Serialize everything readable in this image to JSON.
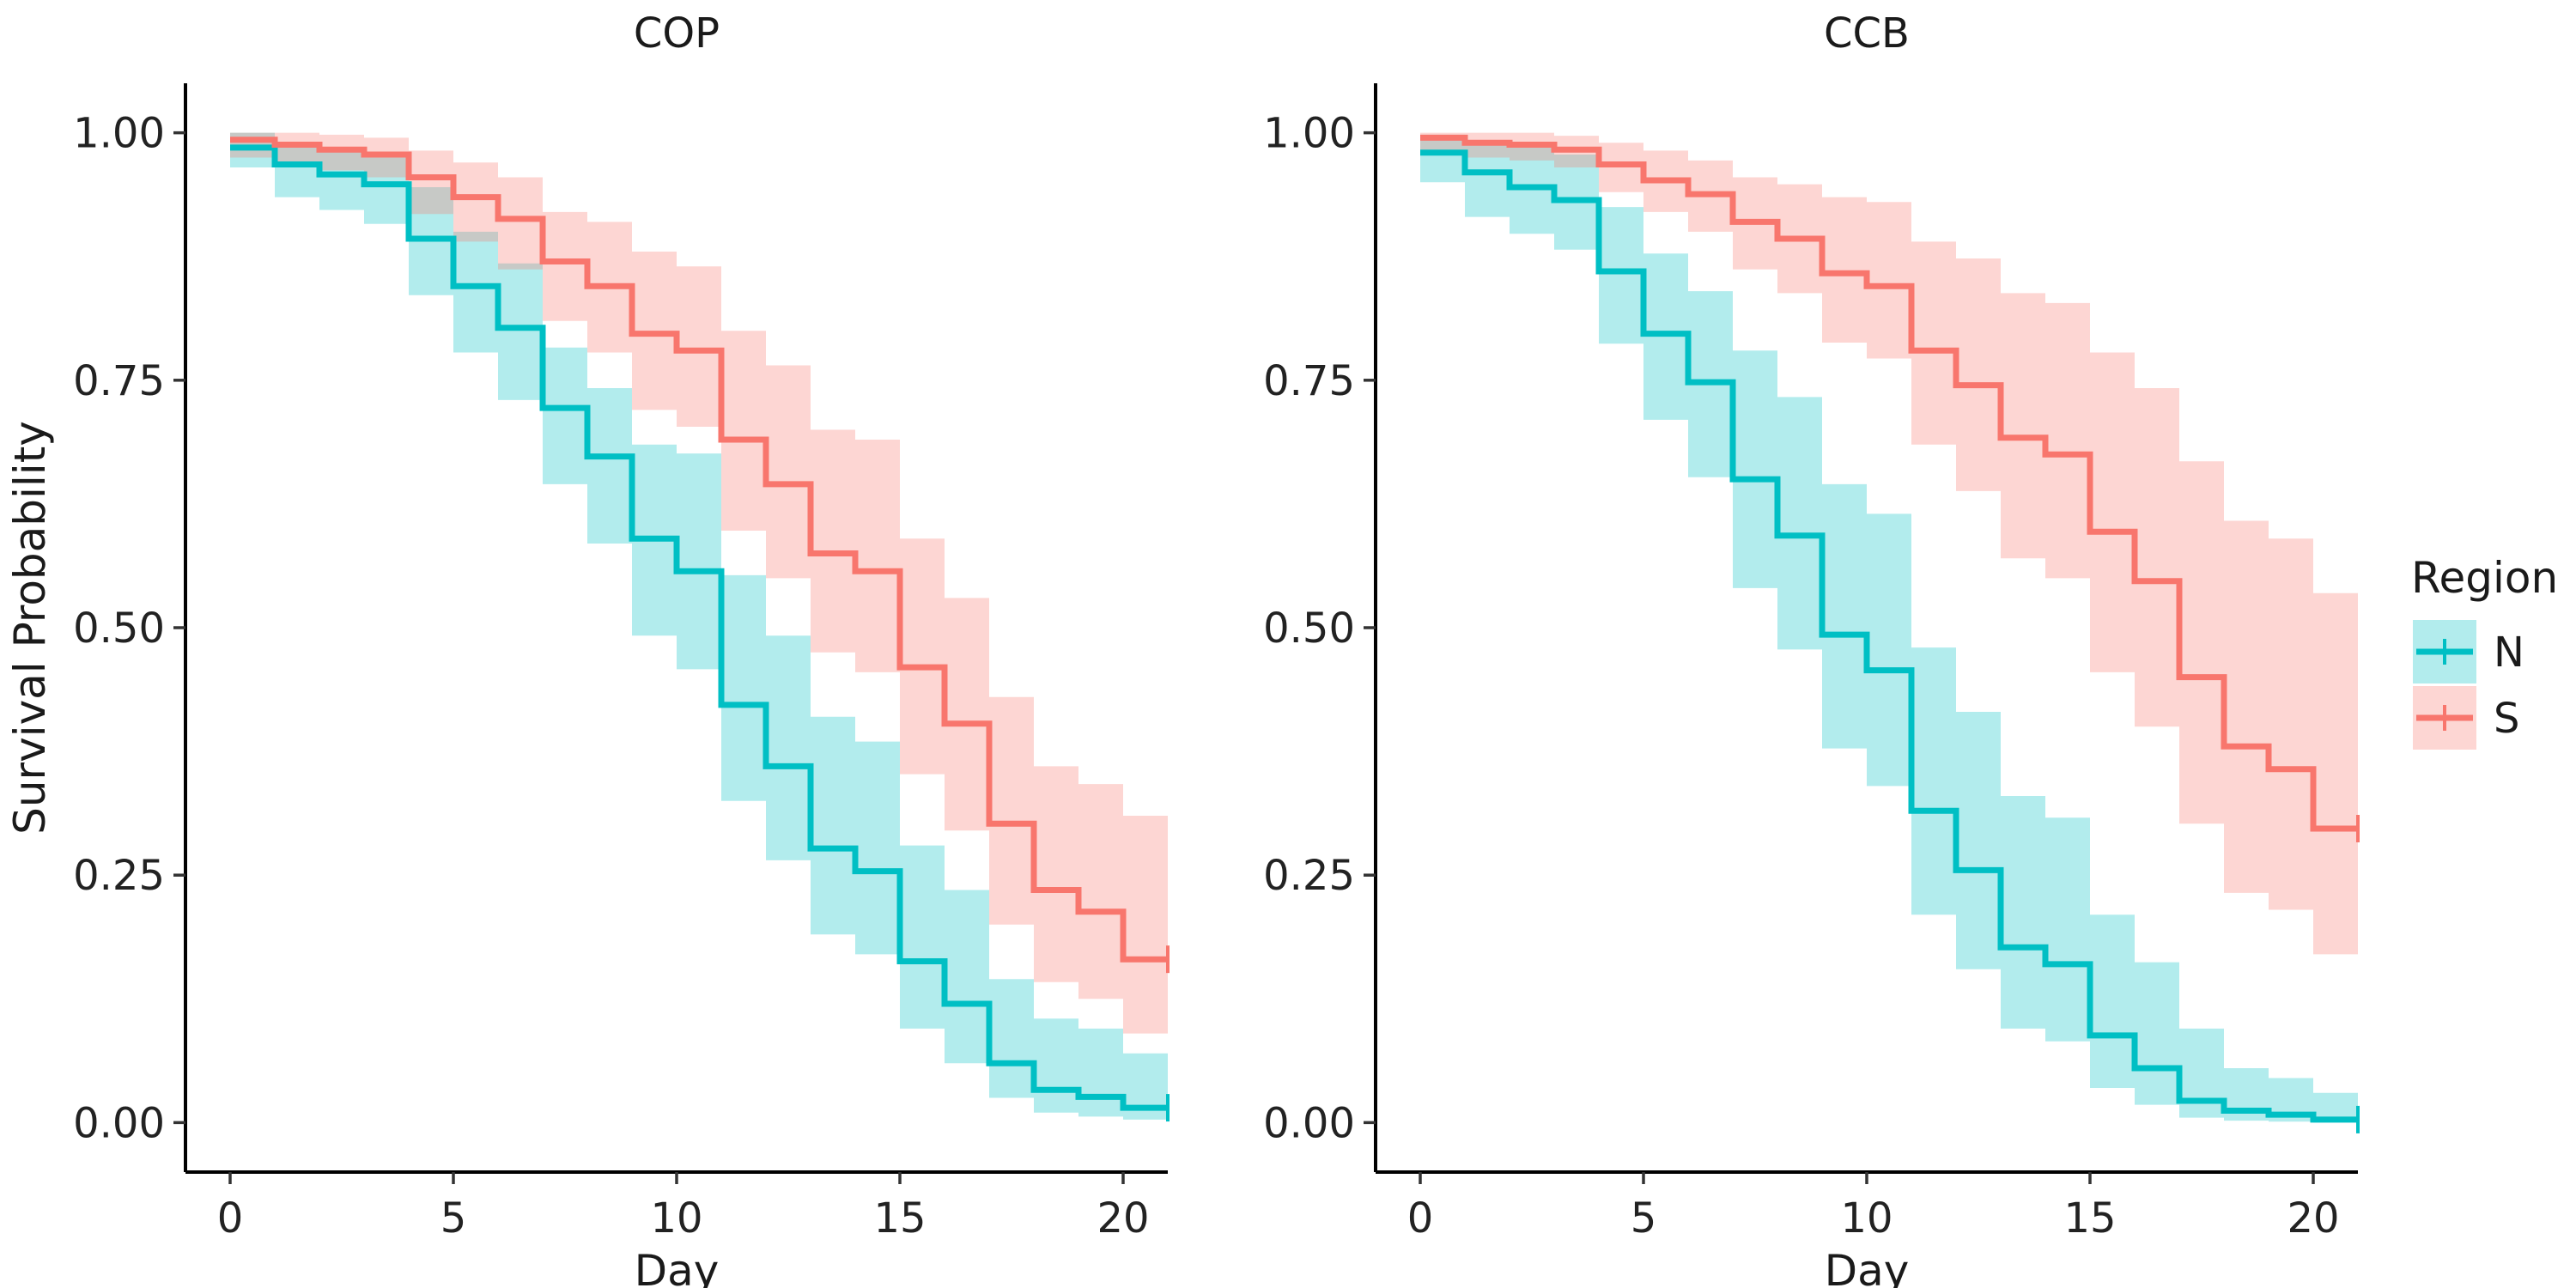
{
  "chart_data": [
    {
      "type": "line",
      "subtype": "kaplan-meier-step",
      "title": "COP",
      "xlabel": "Day",
      "ylabel": "Survival Probability",
      "xlim": [
        -1,
        21
      ],
      "ylim": [
        -0.05,
        1.05
      ],
      "x_ticks": [
        0,
        5,
        10,
        15,
        20
      ],
      "y_ticks": [
        0,
        0.25,
        0.5,
        0.75,
        1.0
      ],
      "x_tick_labels": [
        "0",
        "5",
        "10",
        "15",
        "20"
      ],
      "y_tick_labels": [
        "0.00",
        "0.25",
        "0.50",
        "0.75",
        "1.00"
      ],
      "grid": false,
      "show_ylabel": true,
      "x_end": 21,
      "series": [
        {
          "name": "N",
          "color": "#00BFC4",
          "x": [
            0,
            1,
            2,
            3,
            4,
            5,
            6,
            7,
            8,
            9,
            10,
            11,
            12,
            13,
            14,
            15,
            16,
            17,
            18,
            19,
            20
          ],
          "y": [
            0.985,
            0.968,
            0.958,
            0.948,
            0.893,
            0.845,
            0.803,
            0.722,
            0.673,
            0.59,
            0.557,
            0.422,
            0.36,
            0.277,
            0.254,
            0.163,
            0.12,
            0.06,
            0.033,
            0.026,
            0.015
          ],
          "lower": [
            0.965,
            0.935,
            0.922,
            0.908,
            0.836,
            0.778,
            0.73,
            0.645,
            0.585,
            0.492,
            0.458,
            0.325,
            0.265,
            0.19,
            0.17,
            0.095,
            0.06,
            0.025,
            0.01,
            0.006,
            0.003
          ],
          "upper": [
            1.0,
            0.99,
            0.985,
            0.978,
            0.945,
            0.9,
            0.868,
            0.783,
            0.742,
            0.685,
            0.676,
            0.553,
            0.492,
            0.41,
            0.385,
            0.28,
            0.235,
            0.145,
            0.105,
            0.095,
            0.07
          ]
        },
        {
          "name": "S",
          "color": "#F8766D",
          "x": [
            0,
            1,
            2,
            3,
            4,
            5,
            6,
            7,
            8,
            9,
            10,
            11,
            12,
            13,
            14,
            15,
            16,
            17,
            18,
            19,
            20
          ],
          "y": [
            0.993,
            0.988,
            0.983,
            0.978,
            0.955,
            0.935,
            0.913,
            0.87,
            0.845,
            0.797,
            0.78,
            0.69,
            0.645,
            0.575,
            0.557,
            0.46,
            0.403,
            0.302,
            0.235,
            0.213,
            0.165
          ],
          "lower": [
            0.975,
            0.968,
            0.962,
            0.955,
            0.918,
            0.89,
            0.862,
            0.81,
            0.778,
            0.72,
            0.703,
            0.598,
            0.55,
            0.475,
            0.455,
            0.352,
            0.295,
            0.2,
            0.142,
            0.125,
            0.09
          ],
          "upper": [
            1.0,
            1.0,
            0.998,
            0.995,
            0.982,
            0.97,
            0.955,
            0.92,
            0.91,
            0.88,
            0.865,
            0.8,
            0.765,
            0.7,
            0.69,
            0.59,
            0.53,
            0.43,
            0.36,
            0.342,
            0.31
          ]
        }
      ]
    },
    {
      "type": "line",
      "subtype": "kaplan-meier-step",
      "title": "CCB",
      "xlabel": "Day",
      "ylabel": "",
      "xlim": [
        -1,
        21
      ],
      "ylim": [
        -0.05,
        1.05
      ],
      "x_ticks": [
        0,
        5,
        10,
        15,
        20
      ],
      "y_ticks": [
        0,
        0.25,
        0.5,
        0.75,
        1.0
      ],
      "x_tick_labels": [
        "0",
        "5",
        "10",
        "15",
        "20"
      ],
      "y_tick_labels": [
        "0.00",
        "0.25",
        "0.50",
        "0.75",
        "1.00"
      ],
      "grid": false,
      "show_ylabel": false,
      "x_end": 21,
      "series": [
        {
          "name": "N",
          "color": "#00BFC4",
          "x": [
            0,
            1,
            2,
            3,
            4,
            5,
            6,
            7,
            8,
            9,
            10,
            11,
            12,
            13,
            14,
            15,
            16,
            17,
            18,
            19,
            20
          ],
          "y": [
            0.98,
            0.96,
            0.945,
            0.932,
            0.86,
            0.797,
            0.748,
            0.65,
            0.593,
            0.493,
            0.457,
            0.315,
            0.255,
            0.177,
            0.16,
            0.088,
            0.055,
            0.022,
            0.012,
            0.008,
            0.003
          ],
          "lower": [
            0.95,
            0.915,
            0.898,
            0.882,
            0.787,
            0.71,
            0.652,
            0.54,
            0.478,
            0.378,
            0.34,
            0.21,
            0.155,
            0.095,
            0.082,
            0.035,
            0.018,
            0.005,
            0.002,
            0.001,
            0.0
          ],
          "upper": [
            0.998,
            0.99,
            0.985,
            0.978,
            0.925,
            0.878,
            0.84,
            0.78,
            0.733,
            0.645,
            0.615,
            0.48,
            0.415,
            0.33,
            0.308,
            0.21,
            0.162,
            0.095,
            0.055,
            0.045,
            0.03
          ]
        },
        {
          "name": "S",
          "color": "#F8766D",
          "x": [
            0,
            1,
            2,
            3,
            4,
            5,
            6,
            7,
            8,
            9,
            10,
            11,
            12,
            13,
            14,
            15,
            16,
            17,
            18,
            19,
            20
          ],
          "y": [
            0.995,
            0.99,
            0.988,
            0.983,
            0.968,
            0.952,
            0.938,
            0.91,
            0.893,
            0.858,
            0.845,
            0.78,
            0.745,
            0.692,
            0.675,
            0.597,
            0.547,
            0.45,
            0.38,
            0.357,
            0.297
          ],
          "lower": [
            0.98,
            0.975,
            0.972,
            0.965,
            0.94,
            0.92,
            0.9,
            0.862,
            0.838,
            0.788,
            0.772,
            0.685,
            0.638,
            0.57,
            0.55,
            0.455,
            0.4,
            0.302,
            0.232,
            0.215,
            0.17
          ],
          "upper": [
            1.0,
            1.0,
            1.0,
            0.997,
            0.99,
            0.982,
            0.972,
            0.955,
            0.948,
            0.935,
            0.93,
            0.89,
            0.873,
            0.838,
            0.828,
            0.778,
            0.742,
            0.668,
            0.608,
            0.59,
            0.535
          ]
        }
      ]
    }
  ],
  "legend": {
    "title": "Region",
    "position": "right",
    "items": [
      {
        "label": "N",
        "color": "#00BFC4"
      },
      {
        "label": "S",
        "color": "#F8766D"
      }
    ]
  }
}
